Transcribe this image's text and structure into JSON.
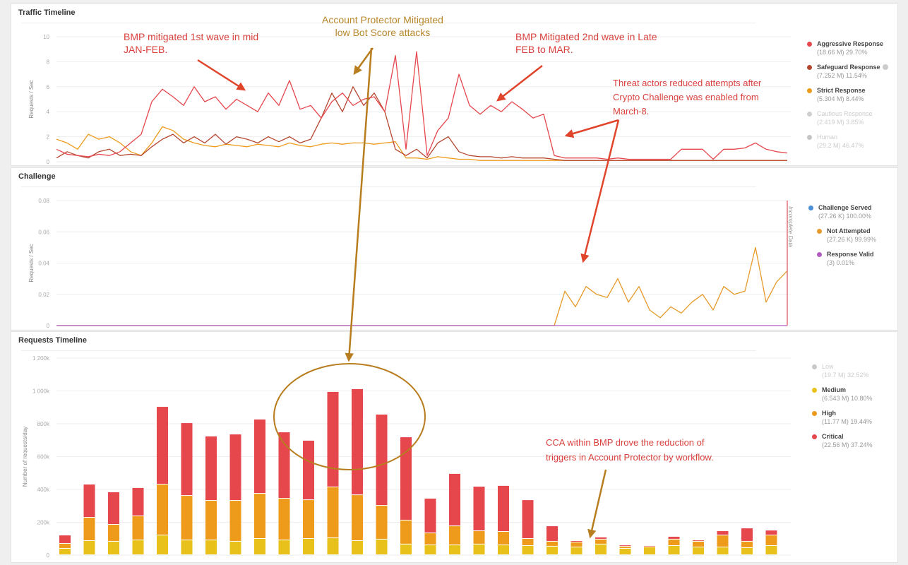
{
  "chart_data": [
    {
      "type": "line",
      "title": "Traffic Timeline",
      "ylabel": "Requests / Sec",
      "ylim": [
        0,
        10
      ],
      "yticks": [
        "0",
        "2",
        "4",
        "6",
        "8",
        "10"
      ],
      "grid": true,
      "legend_position": "right",
      "series": [
        {
          "name": "Aggressive Response",
          "detail": "(18.66 M) 29.70%",
          "color": "#e5474d",
          "faded": false,
          "values": [
            1.0,
            0.6,
            0.5,
            0.4,
            0.6,
            0.5,
            0.8,
            1.5,
            2.2,
            4.8,
            5.8,
            5.2,
            4.5,
            6.0,
            4.8,
            5.2,
            4.2,
            5.0,
            4.5,
            4.0,
            5.5,
            4.5,
            6.5,
            4.2,
            4.5,
            3.5,
            4.8,
            5.5,
            4.5,
            5.0,
            5.2,
            4.0,
            8.5,
            1.0,
            8.8,
            0.5,
            2.5,
            3.5,
            7.0,
            4.5,
            3.8,
            4.5,
            4.0,
            4.8,
            4.2,
            3.5,
            3.8,
            0.5,
            0.3,
            0.3,
            0.3,
            0.3,
            0.2,
            0.3,
            0.2,
            0.2,
            0.2,
            0.2,
            0.2,
            1.0,
            1.0,
            1.0,
            0.2,
            1.0,
            1.0,
            1.1,
            1.5,
            1.0,
            0.8,
            0.7
          ]
        },
        {
          "name": "Safeguard Response",
          "detail": "(7.252 M) 11.54%",
          "color": "#b5472f",
          "faded": false,
          "info": true,
          "values": [
            0.3,
            0.8,
            0.5,
            0.3,
            0.8,
            1.0,
            0.5,
            0.6,
            0.5,
            1.2,
            1.8,
            2.2,
            1.5,
            2.0,
            1.5,
            2.2,
            1.4,
            2.0,
            1.8,
            1.5,
            2.0,
            1.6,
            2.0,
            1.5,
            1.8,
            3.5,
            5.5,
            4.0,
            6.0,
            4.5,
            5.5,
            4.0,
            1.0,
            0.5,
            1.0,
            0.3,
            1.5,
            2.0,
            0.8,
            0.5,
            0.4,
            0.4,
            0.3,
            0.4,
            0.3,
            0.3,
            0.3,
            0.2,
            0.1,
            0.1,
            0.1,
            0.1,
            0.1,
            0.1,
            0.1,
            0.1,
            0.1,
            0.1,
            0.1,
            0.1,
            0.1,
            0.1,
            0.1,
            0.1,
            0.1,
            0.1,
            0.1,
            0.1,
            0.1,
            0.1
          ]
        },
        {
          "name": "Strict Response",
          "detail": "(5.304 M) 8.44%",
          "color": "#ee9b1c",
          "faded": false,
          "values": [
            1.8,
            1.5,
            1.0,
            2.2,
            1.8,
            2.0,
            1.5,
            0.8,
            0.5,
            1.5,
            2.8,
            2.5,
            1.8,
            1.5,
            1.3,
            1.2,
            1.4,
            1.3,
            1.2,
            1.4,
            1.3,
            1.2,
            1.5,
            1.3,
            1.2,
            1.4,
            1.5,
            1.4,
            1.5,
            1.5,
            1.4,
            1.5,
            1.6,
            0.3,
            0.3,
            0.2,
            0.4,
            0.3,
            0.2,
            0.2,
            0.1,
            0.1,
            0.1,
            0.1,
            0.1,
            0.1,
            0.1,
            0.1,
            0.1,
            0.1,
            0.1,
            0.1,
            0.1,
            0.1,
            0.1,
            0.1,
            0.1,
            0.1,
            0.1,
            0.1,
            0.1,
            0.1,
            0.1,
            0.1,
            0.1,
            0.1,
            0.1,
            0.1,
            0.1,
            0.1
          ]
        },
        {
          "name": "Cautious Response",
          "detail": "(2.419 M) 3.85%",
          "color": "#cfcfcf",
          "faded": true,
          "values": []
        },
        {
          "name": "Human",
          "detail": "(29.2 M) 46.47%",
          "color": "#c4c4c4",
          "faded": true,
          "values": []
        }
      ]
    },
    {
      "type": "line",
      "title": "Challenge",
      "ylabel": "Requests / Sec",
      "ylim": [
        0,
        0.08
      ],
      "yticks": [
        "0",
        "0.02",
        "0.04",
        "0.06",
        "0.08"
      ],
      "grid": true,
      "legend_position": "right",
      "marker_label": "Incomplete Data",
      "series": [
        {
          "name": "Challenge Served",
          "detail": "(27.26 K) 100.00%",
          "color": "#4a90d9",
          "values": []
        },
        {
          "name": "Not Attempted",
          "detail": "(27.26 K) 99.99%",
          "color": "#e69a2a",
          "values": [
            0,
            0,
            0,
            0,
            0,
            0,
            0,
            0,
            0,
            0,
            0,
            0,
            0,
            0,
            0,
            0,
            0,
            0,
            0,
            0,
            0,
            0,
            0,
            0,
            0,
            0,
            0,
            0,
            0,
            0,
            0,
            0,
            0,
            0,
            0,
            0,
            0,
            0,
            0,
            0,
            0,
            0,
            0,
            0,
            0,
            0,
            0,
            0,
            0.022,
            0.012,
            0.025,
            0.02,
            0.018,
            0.03,
            0.015,
            0.025,
            0.01,
            0.005,
            0.012,
            0.008,
            0.015,
            0.02,
            0.01,
            0.025,
            0.02,
            0.022,
            0.05,
            0.015,
            0.028,
            0.035
          ]
        },
        {
          "name": "Response Valid",
          "detail": "(3) 0.01%",
          "color": "#b05cc0",
          "values": [
            0,
            0,
            0,
            0,
            0,
            0,
            0,
            0,
            0,
            0,
            0,
            0,
            0,
            0,
            0,
            0,
            0,
            0,
            0,
            0,
            0,
            0,
            0,
            0,
            0,
            0,
            0,
            0,
            0,
            0,
            0,
            0,
            0,
            0,
            0,
            0,
            0,
            0,
            0,
            0,
            0,
            0,
            0,
            0,
            0,
            0,
            0,
            0,
            0,
            0,
            0,
            0,
            0,
            0,
            0,
            0,
            0,
            0,
            0,
            0,
            0,
            0,
            0,
            0,
            0,
            0,
            0,
            0,
            0,
            0
          ]
        }
      ]
    },
    {
      "type": "bar",
      "stacked": true,
      "title": "Requests Timeline",
      "ylabel": "Number of requests/day",
      "ylim": [
        0,
        1200
      ],
      "unit": "k",
      "yticks": [
        "0",
        "200k",
        "400k",
        "600k",
        "800k",
        "1 000k",
        "1 200k"
      ],
      "grid": true,
      "legend_position": "right",
      "legend": [
        {
          "name": "Low",
          "detail": "(19.7 M) 32.52%",
          "color": "#c8c8c8",
          "faded": true
        },
        {
          "name": "Medium",
          "detail": "(6.543 M) 10.80%",
          "color": "#e8c21a",
          "faded": false
        },
        {
          "name": "High",
          "detail": "(11.77 M) 19.44%",
          "color": "#ee9b1c",
          "faded": false
        },
        {
          "name": "Critical",
          "detail": "(22.56 M) 37.24%",
          "color": "#e5474d",
          "faded": false
        }
      ],
      "series": [
        {
          "name": "Medium",
          "color": "#e8c21a",
          "values": [
            39,
            86,
            82,
            90,
            120,
            90,
            90,
            82,
            99,
            90,
            99,
            103,
            86,
            95,
            65,
            60,
            60,
            65,
            60,
            56,
            52,
            47,
            65,
            39,
            47,
            56,
            47,
            47,
            43,
            56
          ]
        },
        {
          "name": "High",
          "color": "#ee9b1c",
          "values": [
            30,
            142,
            103,
            147,
            310,
            271,
            241,
            249,
            275,
            254,
            236,
            310,
            279,
            206,
            146,
            73,
            116,
            81,
            82,
            43,
            30,
            30,
            30,
            13,
            5,
            39,
            35,
            73,
            39,
            64
          ]
        },
        {
          "name": "Critical",
          "color": "#e5474d",
          "values": [
            51,
            202,
            198,
            172,
            473,
            443,
            392,
            404,
            452,
            404,
            362,
            581,
            646,
            555,
            507,
            211,
            319,
            271,
            280,
            236,
            94,
            9,
            13,
            8,
            4,
            17,
            8,
            26,
            81,
            30
          ]
        }
      ]
    }
  ],
  "annotations": {
    "wave1": [
      "BMP mitigated 1st wave in mid",
      "JAN-FEB."
    ],
    "account_protector": [
      "Account Protector Mitigated",
      "low Bot Score attacks"
    ],
    "wave2": [
      "BMP Mitigated 2nd wave in Late",
      "FEB to MAR."
    ],
    "threat": [
      "Threat actors reduced attempts after",
      "Crypto Challenge was enabled from",
      "March-8."
    ],
    "cca": [
      "CCA within BMP drove the reduction of",
      "triggers in Account Protector by workflow."
    ]
  }
}
